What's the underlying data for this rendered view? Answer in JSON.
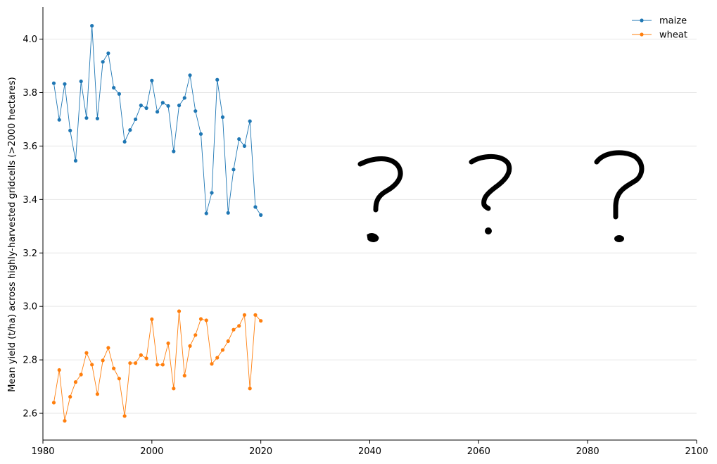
{
  "chart_data": {
    "type": "line",
    "title": "",
    "xlabel": "",
    "ylabel": "Mean yield (t/ha) across highly-harvested gridcells (>2000 hectares)",
    "xlim": [
      1980,
      2100
    ],
    "ylim": [
      2.5,
      4.12
    ],
    "grid": "y-only",
    "legend_position": "top-right",
    "x_ticks": [
      "1980",
      "2000",
      "2020",
      "2040",
      "2060",
      "2080",
      "2100"
    ],
    "y_ticks": [
      "2.6",
      "2.8",
      "3.0",
      "3.2",
      "3.4",
      "3.6",
      "3.8",
      "4.0"
    ],
    "x": [
      1982,
      1983,
      1984,
      1985,
      1986,
      1987,
      1988,
      1989,
      1990,
      1991,
      1992,
      1993,
      1994,
      1995,
      1996,
      1997,
      1998,
      1999,
      2000,
      2001,
      2002,
      2003,
      2004,
      2005,
      2006,
      2007,
      2008,
      2009,
      2010,
      2011,
      2012,
      2013,
      2014,
      2015,
      2016,
      2017,
      2018,
      2019,
      2020
    ],
    "series": [
      {
        "name": "maize",
        "color": "#1f77b4",
        "values": [
          3.835,
          3.698,
          3.832,
          3.658,
          3.545,
          3.842,
          3.705,
          4.05,
          3.703,
          3.915,
          3.947,
          3.818,
          3.795,
          3.616,
          3.66,
          3.7,
          3.752,
          3.742,
          3.845,
          3.728,
          3.762,
          3.75,
          3.58,
          3.752,
          3.78,
          3.865,
          3.731,
          3.645,
          3.348,
          3.425,
          3.848,
          3.708,
          3.35,
          3.512,
          3.626,
          3.6,
          3.693,
          3.372,
          3.342
        ]
      },
      {
        "name": "wheat",
        "color": "#ff7f0e",
        "values": [
          2.64,
          2.762,
          2.572,
          2.662,
          2.717,
          2.745,
          2.826,
          2.782,
          2.672,
          2.798,
          2.845,
          2.768,
          2.73,
          2.59,
          2.788,
          2.788,
          2.818,
          2.806,
          2.952,
          2.782,
          2.782,
          2.862,
          2.693,
          2.982,
          2.741,
          2.852,
          2.893,
          2.953,
          2.948,
          2.785,
          2.808,
          2.837,
          2.87,
          2.913,
          2.927,
          2.968,
          2.693,
          2.968,
          2.946
        ]
      }
    ],
    "annotations": [
      {
        "type": "question-mark-icon",
        "x": 2041
      },
      {
        "type": "question-mark-icon",
        "x": 2062
      },
      {
        "type": "question-mark-icon",
        "x": 2086
      }
    ]
  }
}
